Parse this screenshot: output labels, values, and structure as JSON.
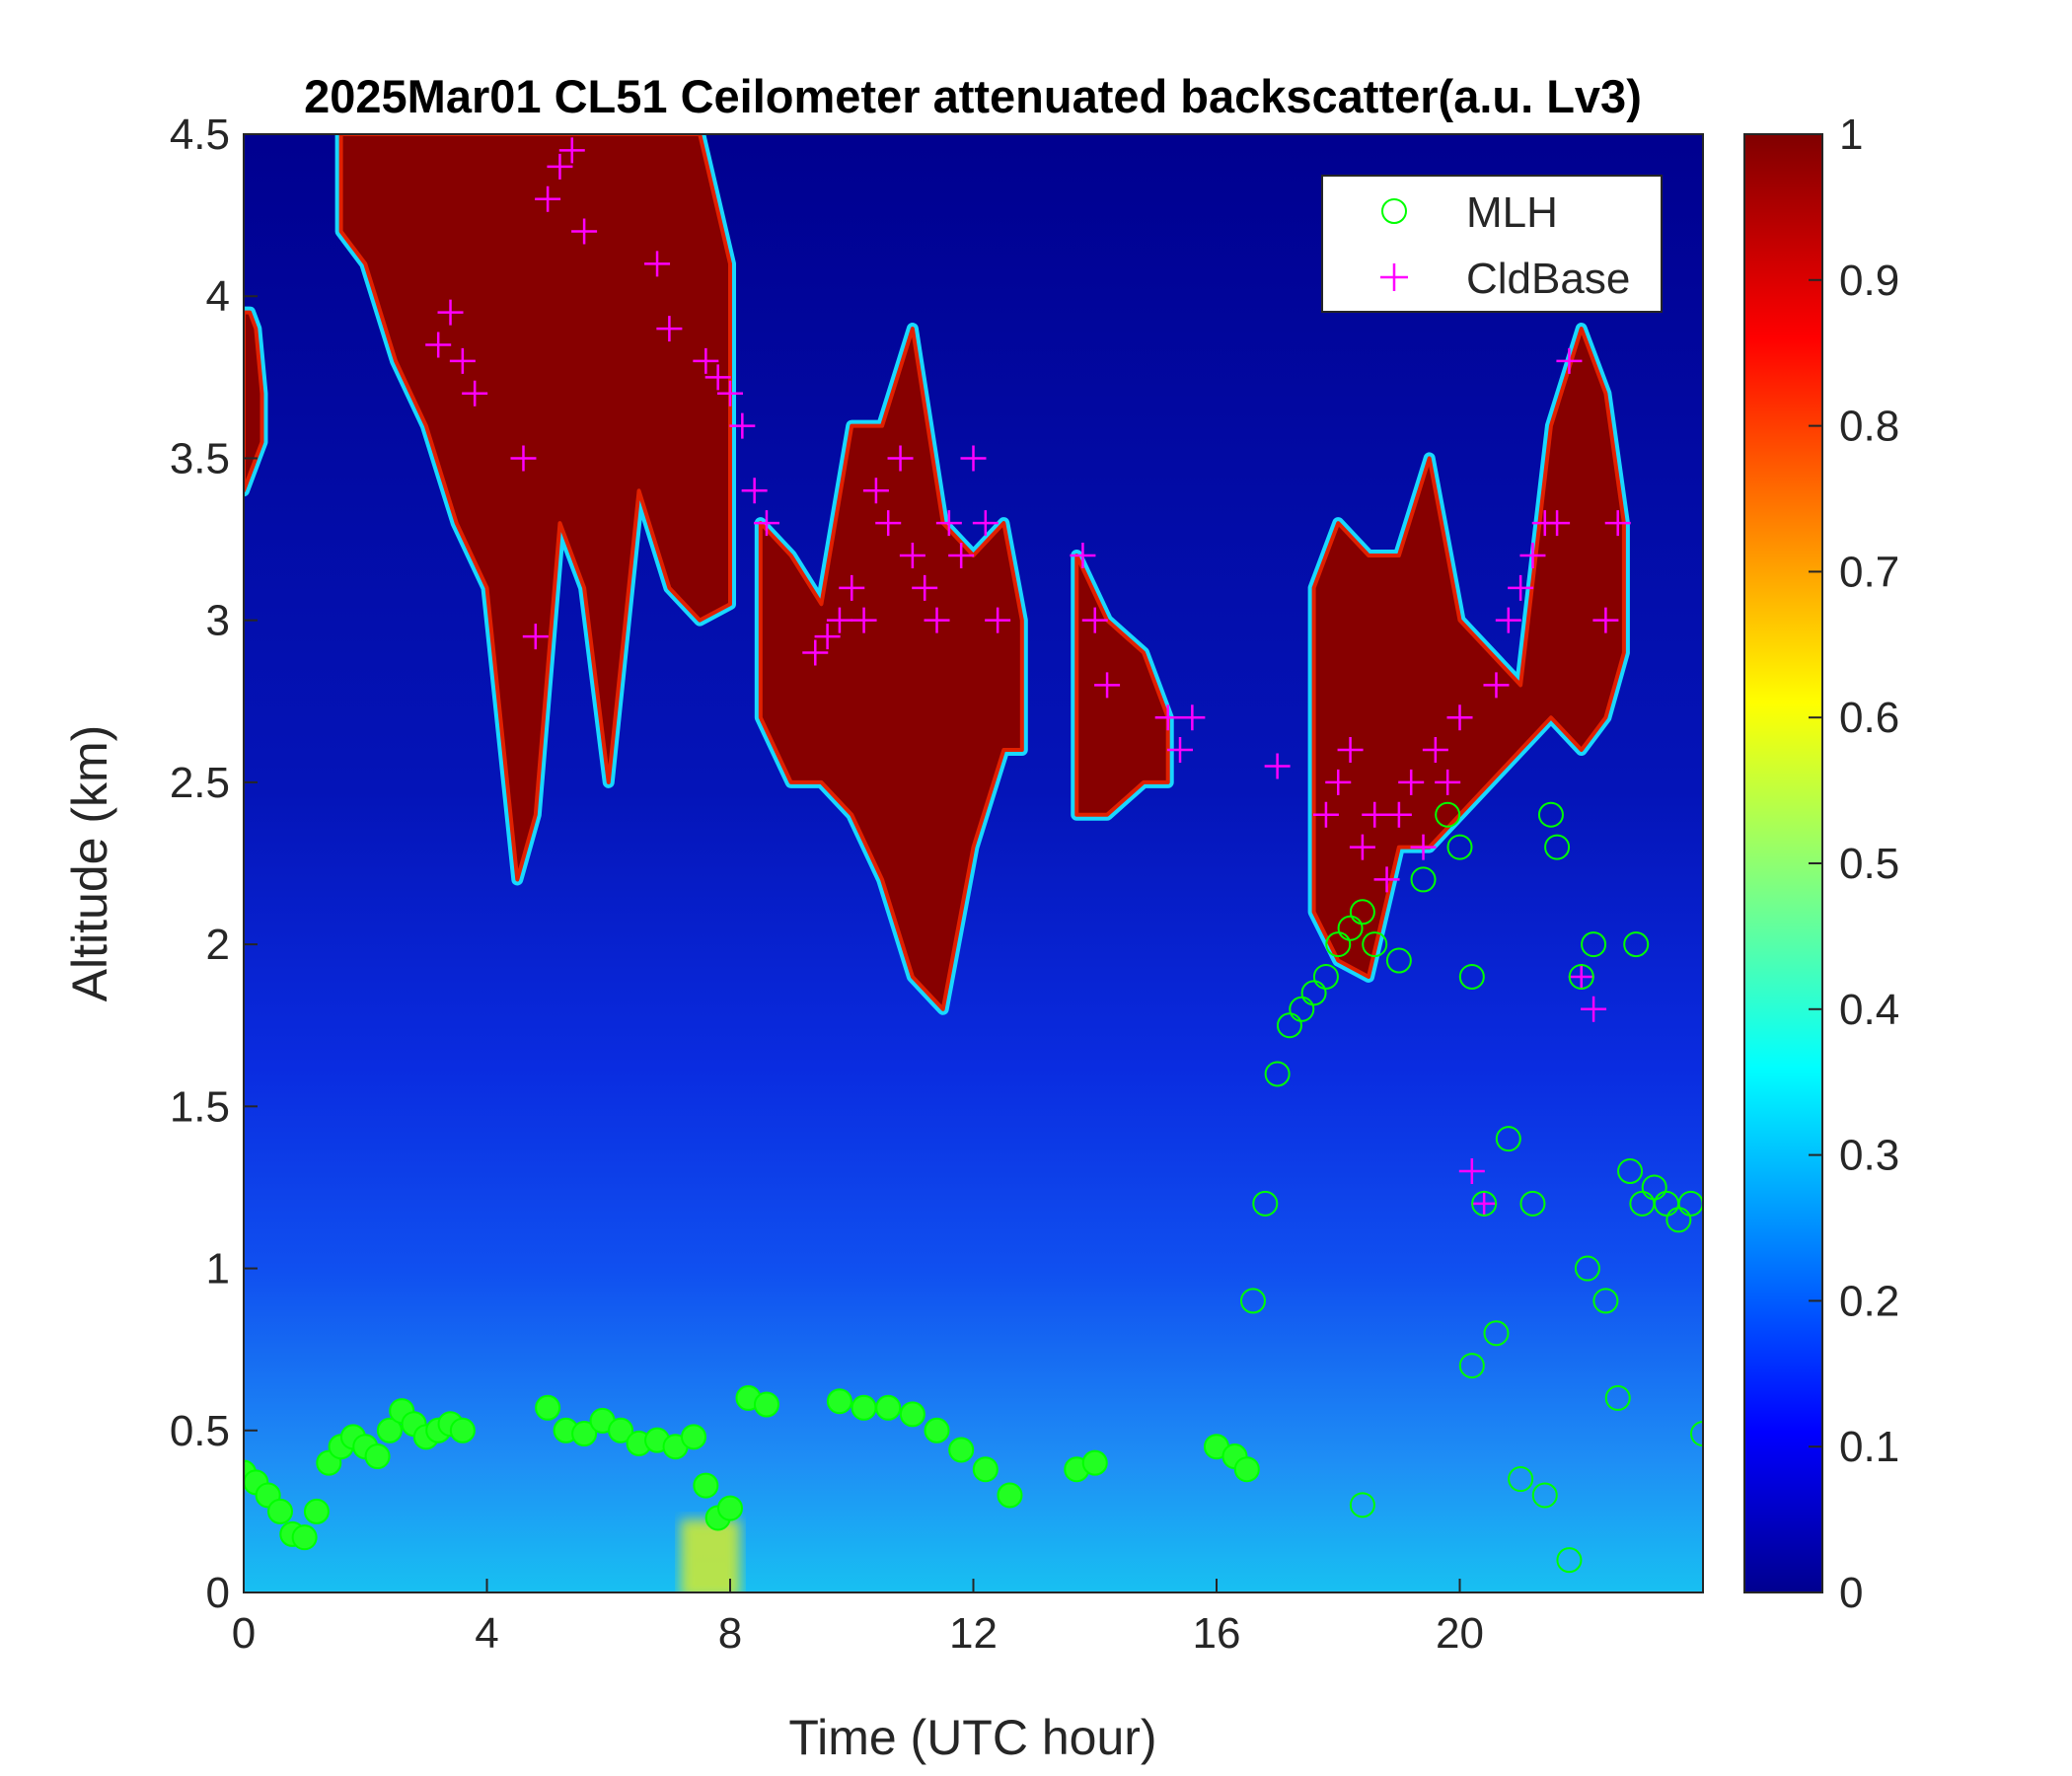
{
  "chart_data": {
    "type": "heatmap",
    "title": "2025Mar01 CL51 Ceilometer attenuated backscatter(a.u. Lv3)",
    "xlabel": "Time (UTC hour)",
    "ylabel": "Altitude (km)",
    "xlim": [
      0,
      24
    ],
    "ylim": [
      0,
      4.5
    ],
    "x_ticks": [
      0,
      4,
      8,
      12,
      16,
      20
    ],
    "x_tick_labels": [
      "0",
      "4",
      "8",
      "12",
      "16",
      "20"
    ],
    "y_ticks": [
      0,
      0.5,
      1,
      1.5,
      2,
      2.5,
      3,
      3.5,
      4,
      4.5
    ],
    "y_tick_labels": [
      "0",
      "0.5",
      "1",
      "1.5",
      "2",
      "2.5",
      "3",
      "3.5",
      "4",
      "4.5"
    ],
    "colorbar": {
      "colormap": "jet",
      "range": [
        0,
        1
      ],
      "ticks": [
        0,
        0.1,
        0.2,
        0.3,
        0.4,
        0.5,
        0.6,
        0.7,
        0.8,
        0.9,
        1
      ],
      "tick_labels": [
        "0",
        "0.1",
        "0.2",
        "0.3",
        "0.4",
        "0.5",
        "0.6",
        "0.7",
        "0.8",
        "0.9",
        "1"
      ]
    },
    "legend": {
      "placement": "top-right",
      "entries": [
        {
          "label": "MLH",
          "marker": "circle",
          "color": "#00ff00"
        },
        {
          "label": "CldBase",
          "marker": "plus",
          "color": "#ff00ff"
        }
      ]
    },
    "cloud_layers": [
      {
        "t": [
          0.0,
          0.1,
          0.2,
          0.3
        ],
        "top": [
          3.95,
          3.95,
          3.9,
          3.7
        ],
        "bottom": [
          3.4,
          3.45,
          3.5,
          3.55
        ]
      },
      {
        "t": [
          1.6,
          2.0,
          2.5,
          3.0,
          3.5,
          4.0,
          4.5,
          4.8,
          5.2,
          5.6,
          6.0,
          6.5,
          7.0,
          7.5,
          8.0
        ],
        "top": [
          4.5,
          4.5,
          4.5,
          4.5,
          4.5,
          4.5,
          4.5,
          4.5,
          4.5,
          4.5,
          4.5,
          4.5,
          4.5,
          4.5,
          4.1
        ],
        "bottom": [
          4.2,
          4.1,
          3.8,
          3.6,
          3.3,
          3.1,
          2.2,
          2.4,
          3.3,
          3.1,
          2.5,
          3.4,
          3.1,
          3.0,
          3.05
        ]
      },
      {
        "t": [
          8.5,
          9.0,
          9.5,
          10.0,
          10.5,
          11.0,
          11.5,
          12.0,
          12.5,
          12.8
        ],
        "top": [
          3.3,
          3.2,
          3.05,
          3.6,
          3.6,
          3.9,
          3.3,
          3.2,
          3.3,
          3.0
        ],
        "bottom": [
          2.7,
          2.5,
          2.5,
          2.4,
          2.2,
          1.9,
          1.8,
          2.3,
          2.6,
          2.6
        ]
      },
      {
        "t": [
          13.7,
          14.2,
          14.8,
          15.2
        ],
        "top": [
          3.2,
          3.0,
          2.9,
          2.7
        ],
        "bottom": [
          2.4,
          2.4,
          2.5,
          2.5
        ]
      },
      {
        "t": [
          17.6,
          18.0,
          18.5,
          19.0,
          19.5,
          20.0,
          20.5,
          21.0,
          21.5,
          22.0,
          22.4,
          22.7
        ],
        "top": [
          3.1,
          3.3,
          3.2,
          3.2,
          3.5,
          3.0,
          2.9,
          2.8,
          3.6,
          3.9,
          3.7,
          3.3
        ],
        "bottom": [
          2.1,
          1.95,
          1.9,
          2.3,
          2.3,
          2.4,
          2.5,
          2.6,
          2.7,
          2.6,
          2.7,
          2.9
        ]
      }
    ],
    "series": [
      {
        "name": "MLH",
        "x": [
          0.0,
          0.2,
          0.4,
          0.6,
          0.8,
          1.0,
          1.2,
          1.4,
          1.6,
          1.8,
          2.0,
          2.2,
          2.4,
          2.6,
          2.8,
          3.0,
          3.2,
          3.4,
          3.6,
          5.0,
          5.3,
          5.6,
          5.9,
          6.2,
          6.5,
          6.8,
          7.1,
          7.4,
          7.6,
          7.8,
          8.0,
          8.3,
          8.6,
          9.8,
          10.2,
          10.6,
          11.0,
          11.4,
          11.8,
          12.2,
          12.6,
          13.7,
          14.0,
          16.0,
          16.3,
          16.5,
          16.6,
          16.8,
          17.0,
          17.2,
          17.4,
          17.6,
          17.8,
          18.0,
          18.2,
          18.4,
          18.6,
          19.0,
          19.4,
          19.8,
          20.0,
          20.2,
          20.4,
          20.6,
          20.8,
          21.0,
          21.2,
          21.4,
          21.6,
          21.8,
          22.0,
          22.2,
          22.4,
          22.6,
          22.8,
          23.0,
          23.2,
          23.4,
          23.6,
          23.8,
          24.0,
          18.4,
          20.2,
          21.5,
          22.1,
          22.9
        ],
        "y": [
          0.37,
          0.34,
          0.3,
          0.25,
          0.18,
          0.17,
          0.25,
          0.4,
          0.45,
          0.48,
          0.45,
          0.42,
          0.5,
          0.56,
          0.52,
          0.48,
          0.5,
          0.52,
          0.5,
          0.57,
          0.5,
          0.49,
          0.53,
          0.5,
          0.46,
          0.47,
          0.45,
          0.48,
          0.33,
          0.23,
          0.26,
          0.6,
          0.58,
          0.59,
          0.57,
          0.57,
          0.55,
          0.5,
          0.44,
          0.38,
          0.3,
          0.38,
          0.4,
          0.45,
          0.42,
          0.38,
          0.9,
          1.2,
          1.6,
          1.75,
          1.8,
          1.85,
          1.9,
          2.0,
          2.05,
          2.1,
          2.0,
          1.95,
          2.2,
          2.4,
          2.3,
          1.9,
          1.2,
          0.8,
          1.4,
          0.35,
          1.2,
          0.3,
          2.3,
          0.1,
          1.9,
          2.0,
          0.9,
          0.6,
          1.3,
          1.2,
          1.25,
          1.2,
          1.15,
          1.2,
          0.49,
          0.27,
          0.7,
          2.4,
          1.0,
          2.0
        ]
      },
      {
        "name": "CldBase",
        "x": [
          3.2,
          3.4,
          3.6,
          3.8,
          4.6,
          4.8,
          5.0,
          5.2,
          5.4,
          5.6,
          6.8,
          7.0,
          7.6,
          7.8,
          8.0,
          8.2,
          8.4,
          8.6,
          9.4,
          9.6,
          9.8,
          10.0,
          10.2,
          10.4,
          10.6,
          10.8,
          11.0,
          11.2,
          11.4,
          11.6,
          11.8,
          12.0,
          12.2,
          12.4,
          13.8,
          14.0,
          14.2,
          15.2,
          15.4,
          15.6,
          17.0,
          17.8,
          18.0,
          18.2,
          18.4,
          18.6,
          18.8,
          19.0,
          19.2,
          19.4,
          19.6,
          19.8,
          20.0,
          20.2,
          20.4,
          20.6,
          20.8,
          21.0,
          21.2,
          21.4,
          21.6,
          21.8,
          22.0,
          22.2,
          22.4,
          22.6
        ],
        "y": [
          3.85,
          3.95,
          3.8,
          3.7,
          3.5,
          2.95,
          4.3,
          4.4,
          4.45,
          4.2,
          4.1,
          3.9,
          3.8,
          3.75,
          3.7,
          3.6,
          3.4,
          3.3,
          2.9,
          2.95,
          3.0,
          3.1,
          3.0,
          3.4,
          3.3,
          3.5,
          3.2,
          3.1,
          3.0,
          3.3,
          3.2,
          3.5,
          3.3,
          3.0,
          3.2,
          3.0,
          2.8,
          2.7,
          2.6,
          2.7,
          2.55,
          2.4,
          2.5,
          2.6,
          2.3,
          2.4,
          2.2,
          2.4,
          2.5,
          2.3,
          2.6,
          2.5,
          2.7,
          1.3,
          1.2,
          2.8,
          3.0,
          3.1,
          3.2,
          3.3,
          3.3,
          3.8,
          1.9,
          1.8,
          3.0,
          3.3
        ]
      }
    ]
  }
}
